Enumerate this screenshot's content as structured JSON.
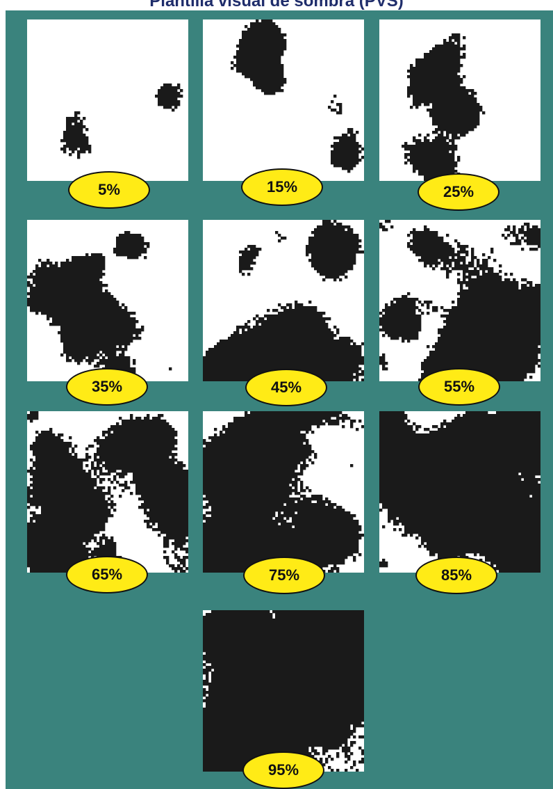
{
  "title": "Plantilla visual de sombra (PVS)",
  "colors": {
    "background": "#3a837d",
    "canopy": "#1a1a1a",
    "sky": "#ffffff",
    "badge_fill": "#ffeb16",
    "badge_border": "#111111",
    "title_text": "#1f2d6b"
  },
  "panels": [
    {
      "label": "5%",
      "shade_fraction": 0.05
    },
    {
      "label": "15%",
      "shade_fraction": 0.15
    },
    {
      "label": "25%",
      "shade_fraction": 0.25
    },
    {
      "label": "35%",
      "shade_fraction": 0.35
    },
    {
      "label": "45%",
      "shade_fraction": 0.45
    },
    {
      "label": "55%",
      "shade_fraction": 0.55
    },
    {
      "label": "65%",
      "shade_fraction": 0.65
    },
    {
      "label": "75%",
      "shade_fraction": 0.75
    },
    {
      "label": "85%",
      "shade_fraction": 0.85
    },
    {
      "label": "95%",
      "shade_fraction": 0.95
    }
  ]
}
